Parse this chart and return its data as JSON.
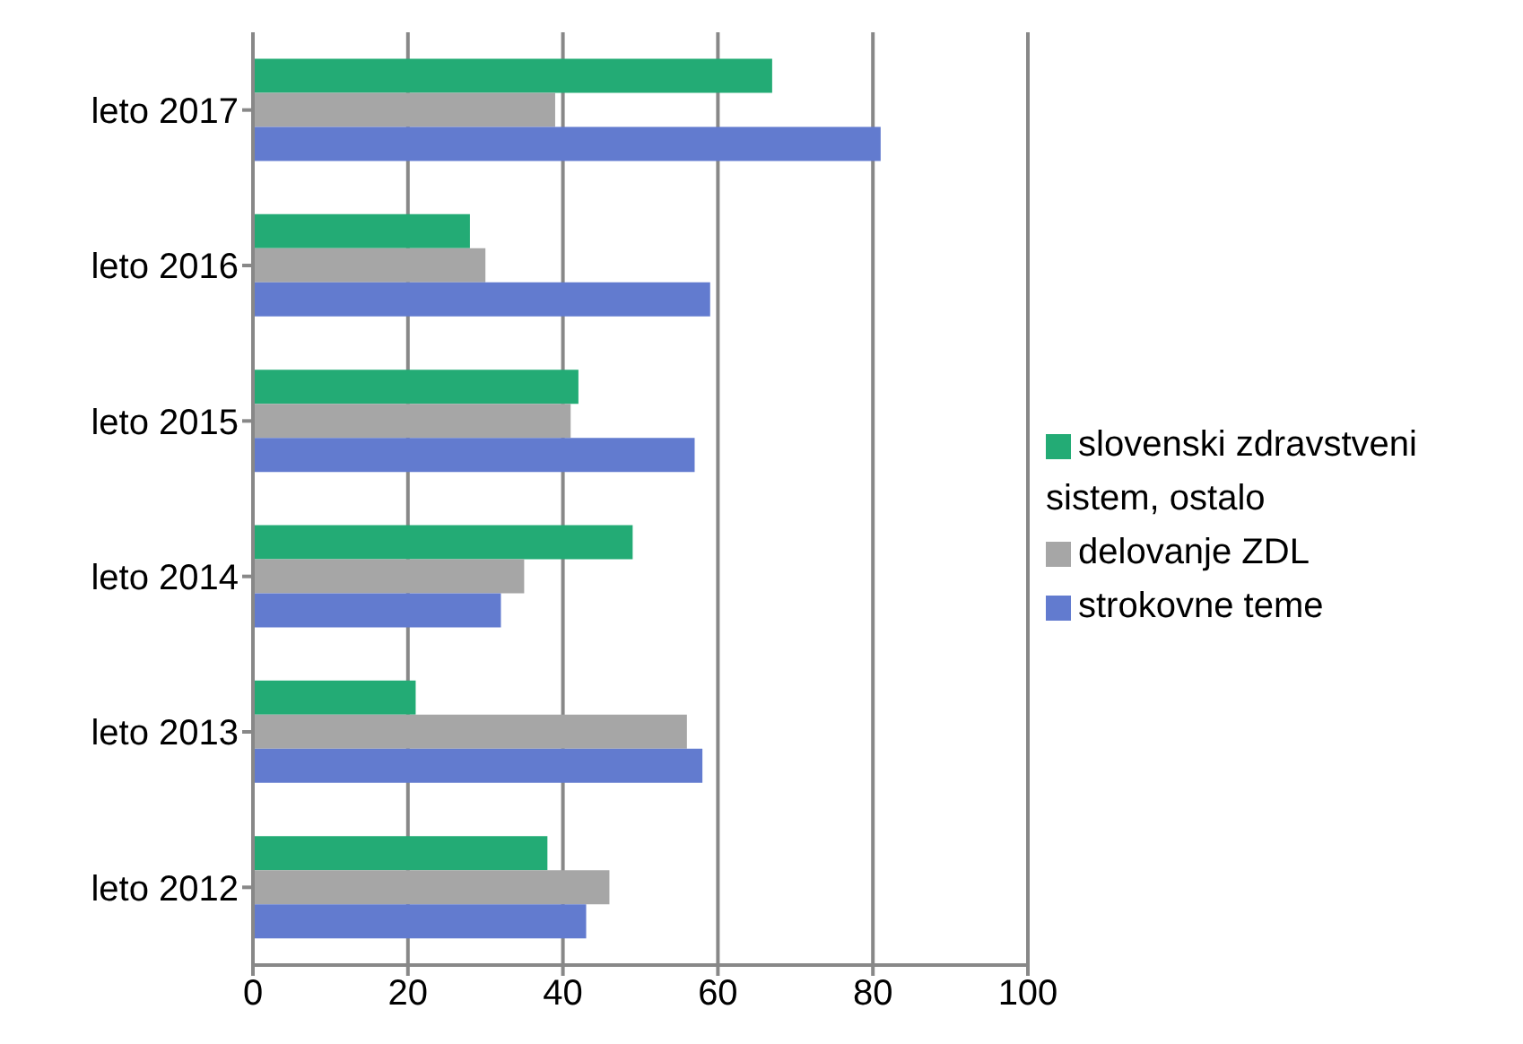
{
  "chart_data": {
    "type": "bar",
    "orientation": "horizontal",
    "categories": [
      "leto 2017",
      "leto 2016",
      "leto 2015",
      "leto 2014",
      "leto 2013",
      "leto 2012"
    ],
    "series": [
      {
        "name": "slovenski zdravstveni sistem, ostalo",
        "color": "#23ab75",
        "values": [
          67,
          28,
          42,
          49,
          21,
          38
        ]
      },
      {
        "name": "delovanje ZDL",
        "color": "#a6a6a6",
        "values": [
          39,
          30,
          41,
          35,
          56,
          46
        ]
      },
      {
        "name": "strokovne teme",
        "color": "#627bcf",
        "values": [
          81,
          59,
          57,
          32,
          58,
          43
        ]
      }
    ],
    "xlim": [
      0,
      100
    ],
    "xticks": [
      0,
      20,
      40,
      60,
      80,
      100
    ],
    "grid": "x",
    "legend": "right"
  }
}
